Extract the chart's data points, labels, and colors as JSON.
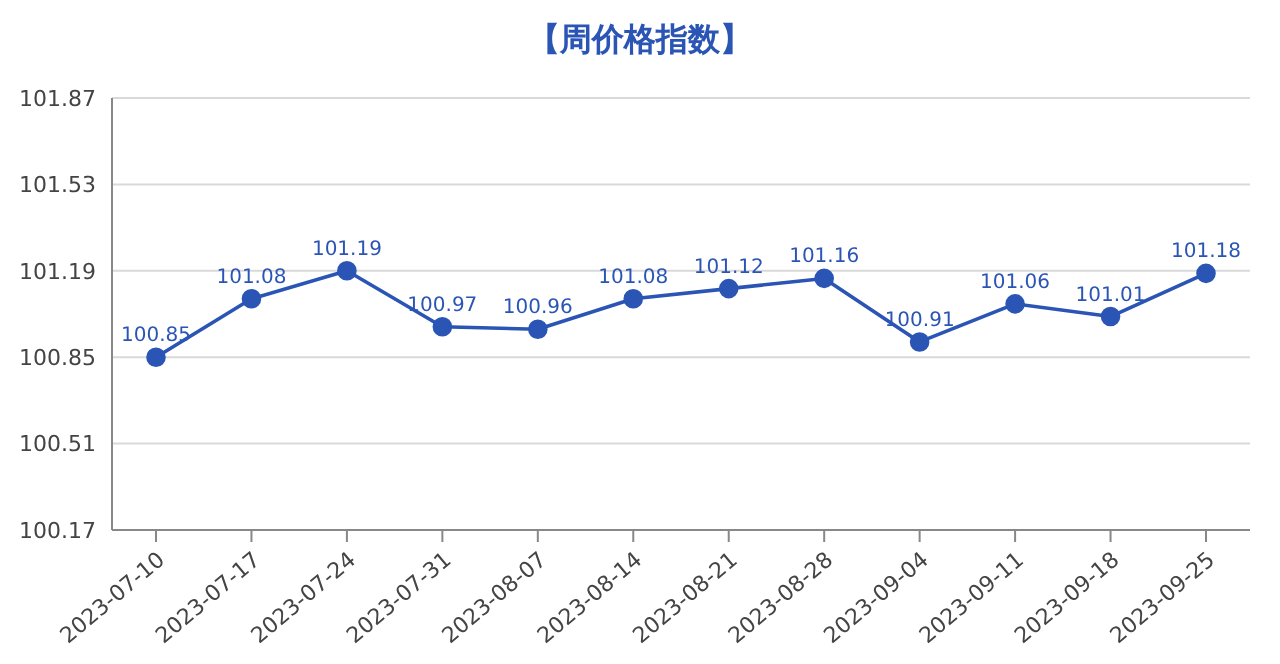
{
  "chart_data": {
    "type": "line",
    "title": "【周价格指数】",
    "categories": [
      "2023-07-10",
      "2023-07-17",
      "2023-07-24",
      "2023-07-31",
      "2023-08-07",
      "2023-08-14",
      "2023-08-21",
      "2023-08-28",
      "2023-09-04",
      "2023-09-11",
      "2023-09-18",
      "2023-09-25"
    ],
    "series": [
      {
        "color": "#2a55b5",
        "values": [
          100.85,
          101.08,
          101.19,
          100.97,
          100.96,
          101.08,
          101.12,
          101.16,
          100.91,
          101.06,
          101.01,
          101.18
        ]
      }
    ],
    "ylim": [
      100.17,
      101.87
    ],
    "yticks": [
      100.17,
      100.51,
      100.85,
      101.19,
      101.53,
      101.87
    ],
    "grid": "y",
    "marker": "circle",
    "line_style": "solid",
    "data_labels": true
  }
}
